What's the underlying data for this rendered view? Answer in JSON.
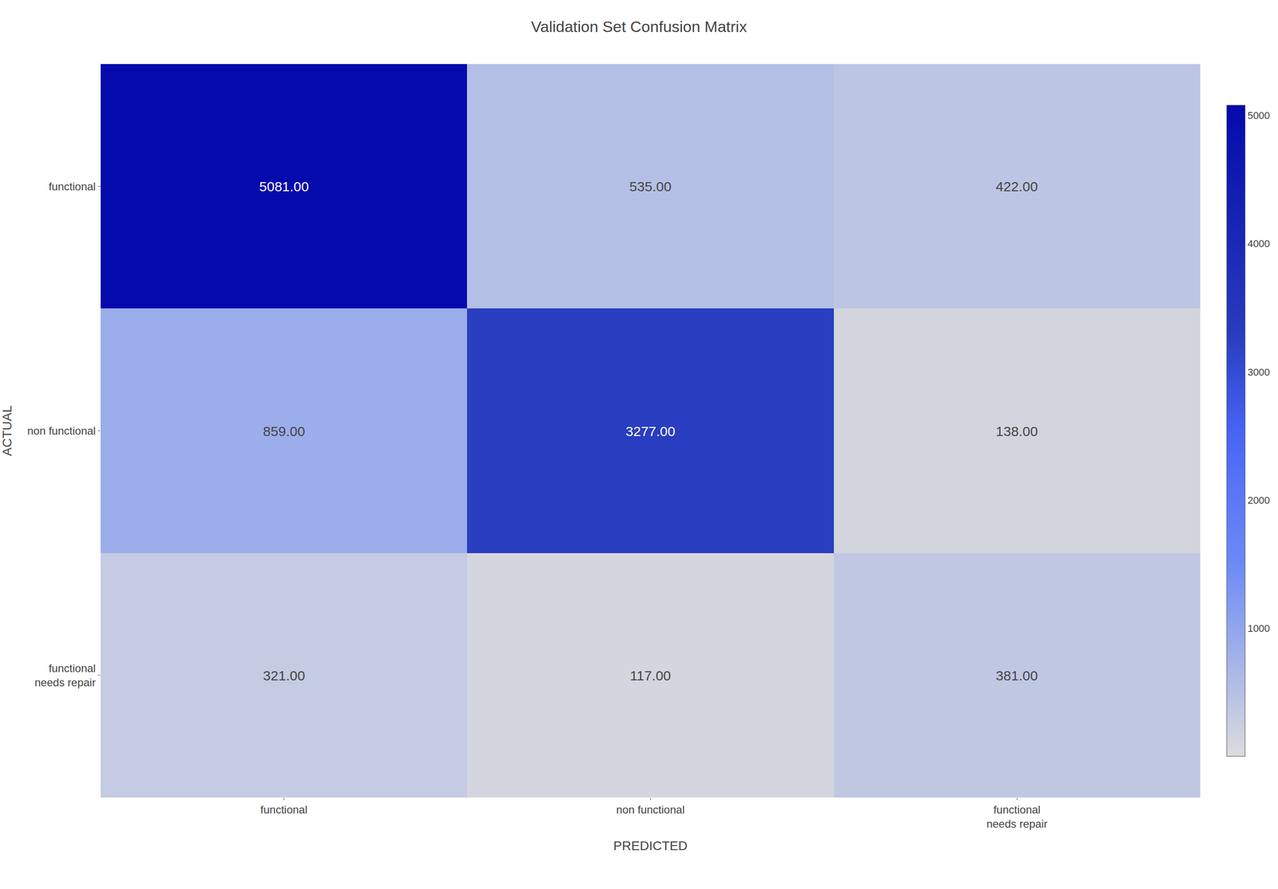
{
  "chart_data": {
    "type": "heatmap",
    "title": "Validation Set Confusion Matrix",
    "x": [
      "functional",
      "non functional",
      "functional\nneeds repair"
    ],
    "y": [
      "functional",
      "non functional",
      "functional\nneeds repair"
    ],
    "xlabel": "PREDICTED",
    "ylabel": "ACTUAL",
    "values": [
      [
        5081.0,
        535.0,
        422.0
      ],
      [
        859.0,
        3277.0,
        138.0
      ],
      [
        321.0,
        117.0,
        381.0
      ]
    ],
    "value_labels": [
      [
        "5081.00",
        "535.00",
        "422.00"
      ],
      [
        "859.00",
        "3277.00",
        "138.00"
      ],
      [
        "321.00",
        "117.00",
        "381.00"
      ]
    ],
    "data_labels": true,
    "colorbar_range": [
      0,
      5081
    ],
    "colorbar_ticks": [
      1000,
      2000,
      3000,
      4000,
      5000
    ]
  }
}
